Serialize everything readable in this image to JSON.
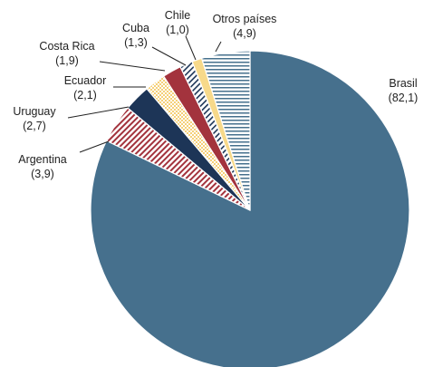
{
  "chart_data": {
    "type": "pie",
    "slices": [
      {
        "name": "Brasil",
        "value": 82.1,
        "value_label": "(82,1)",
        "color": "#46708d",
        "pattern": "solid"
      },
      {
        "name": "Argentina",
        "value": 3.9,
        "value_label": "(3,9)",
        "color": "#a3333d",
        "pattern": "diagonal-stripes"
      },
      {
        "name": "Uruguay",
        "value": 2.7,
        "value_label": "(2,7)",
        "color": "#1d3557",
        "pattern": "solid"
      },
      {
        "name": "Ecuador",
        "value": 2.1,
        "value_label": "(2,1)",
        "color": "#f2c14e",
        "pattern": "dots"
      },
      {
        "name": "Costa Rica",
        "value": 1.9,
        "value_label": "(1,9)",
        "color": "#a3333d",
        "pattern": "solid"
      },
      {
        "name": "Cuba",
        "value": 1.3,
        "value_label": "(1,3)",
        "color": "#1d3557",
        "pattern": "diagonal-stripes"
      },
      {
        "name": "Chile",
        "value": 1.0,
        "value_label": "(1,0)",
        "color": "#f7d98a",
        "pattern": "solid"
      },
      {
        "name": "Otros países",
        "value": 4.9,
        "value_label": "(4,9)",
        "color": "#46708d",
        "pattern": "horizontal-stripes"
      }
    ],
    "start_angle": "12 o'clock",
    "direction": "clockwise"
  }
}
